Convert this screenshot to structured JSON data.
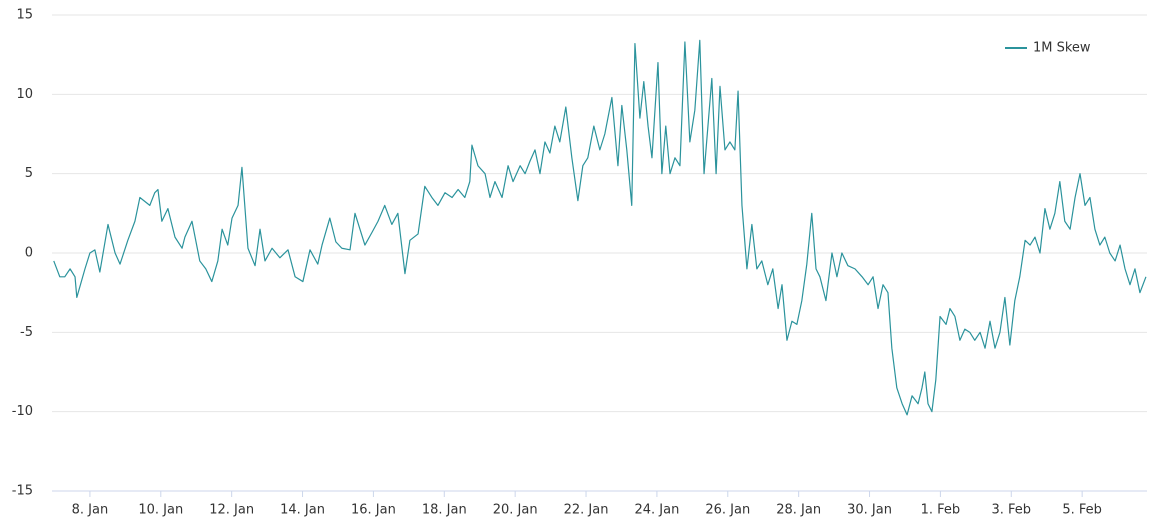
{
  "chart_data": {
    "type": "line",
    "x": [
      6.98,
      7.15,
      7.29,
      7.44,
      7.58,
      7.63,
      7.86,
      8.0,
      8.14,
      8.28,
      8.51,
      8.71,
      8.85,
      9.07,
      9.27,
      9.41,
      9.69,
      9.83,
      9.92,
      10.03,
      10.2,
      10.4,
      10.6,
      10.68,
      10.88,
      11.1,
      11.27,
      11.44,
      11.61,
      11.73,
      11.89,
      12.01,
      12.18,
      12.29,
      12.46,
      12.66,
      12.8,
      12.94,
      13.14,
      13.36,
      13.59,
      13.79,
      14.01,
      14.21,
      14.43,
      14.55,
      14.77,
      14.94,
      15.11,
      15.34,
      15.48,
      15.62,
      15.76,
      15.96,
      16.13,
      16.32,
      16.52,
      16.69,
      16.89,
      17.03,
      17.26,
      17.45,
      17.65,
      17.82,
      18.02,
      18.22,
      18.39,
      18.58,
      18.72,
      18.78,
      18.95,
      19.15,
      19.29,
      19.43,
      19.63,
      19.8,
      19.94,
      20.14,
      20.28,
      20.42,
      20.56,
      20.7,
      20.84,
      20.98,
      21.12,
      21.26,
      21.43,
      21.6,
      21.77,
      21.91,
      22.05,
      22.22,
      22.39,
      22.53,
      22.73,
      22.9,
      23.01,
      23.15,
      23.29,
      23.38,
      23.52,
      23.63,
      23.75,
      23.86,
      24.03,
      24.14,
      24.25,
      24.37,
      24.51,
      24.65,
      24.79,
      24.93,
      25.07,
      25.21,
      25.33,
      25.44,
      25.55,
      25.67,
      25.78,
      25.92,
      26.06,
      26.2,
      26.29,
      26.4,
      26.54,
      26.68,
      26.82,
      26.96,
      27.13,
      27.27,
      27.42,
      27.53,
      27.67,
      27.81,
      27.95,
      28.09,
      28.23,
      28.37,
      28.49,
      28.6,
      28.77,
      28.94,
      29.08,
      29.22,
      29.39,
      29.59,
      29.79,
      29.96,
      30.1,
      30.24,
      30.38,
      30.52,
      30.63,
      30.77,
      30.92,
      31.06,
      31.2,
      31.37,
      31.48,
      31.56,
      31.65,
      31.76,
      31.87,
      31.99,
      32.16,
      32.27,
      32.41,
      32.55,
      32.69,
      32.83,
      32.97,
      33.12,
      33.26,
      33.4,
      33.54,
      33.68,
      33.82,
      33.96,
      34.1,
      34.24,
      34.39,
      34.53,
      34.67,
      34.81,
      34.95,
      35.09,
      35.23,
      35.37,
      35.51,
      35.66,
      35.8,
      35.94,
      36.08,
      36.22,
      36.36,
      36.5,
      36.64,
      36.78,
      36.93,
      37.07,
      37.21,
      37.35,
      37.49,
      37.63,
      37.8
    ],
    "series": [
      {
        "name": "1M Skew",
        "color": "#2b939c",
        "values": [
          -0.5,
          -1.5,
          -1.5,
          -1,
          -1.5,
          -2.8,
          -1,
          0,
          0.2,
          -1.2,
          1.8,
          0,
          -0.7,
          0.8,
          2,
          3.5,
          3,
          3.8,
          4,
          2,
          2.8,
          1,
          0.3,
          1,
          2,
          -0.5,
          -1,
          -1.8,
          -0.5,
          1.5,
          0.5,
          2.2,
          3,
          5.4,
          0.3,
          -0.8,
          1.5,
          -0.5,
          0.3,
          -0.3,
          0.2,
          -1.5,
          -1.8,
          0.2,
          -0.7,
          0.5,
          2.2,
          0.7,
          0.3,
          0.2,
          2.5,
          1.5,
          0.5,
          1.3,
          2,
          3,
          1.8,
          2.5,
          -1.3,
          0.8,
          1.2,
          4.2,
          3.5,
          3,
          3.8,
          3.5,
          4,
          3.5,
          4.5,
          6.8,
          5.5,
          5,
          3.5,
          4.5,
          3.5,
          5.5,
          4.5,
          5.5,
          5,
          5.8,
          6.5,
          5,
          7,
          6.3,
          8,
          7,
          9.2,
          6,
          3.3,
          5.5,
          6,
          8,
          6.5,
          7.5,
          9.8,
          5.5,
          9.3,
          6.5,
          3,
          13.2,
          8.5,
          10.8,
          8,
          6,
          12,
          5,
          8,
          5,
          6,
          5.5,
          13.3,
          7,
          9,
          13.4,
          5,
          8,
          11,
          5,
          10.5,
          6.5,
          7,
          6.5,
          10.2,
          3,
          -1,
          1.8,
          -1,
          -0.5,
          -2,
          -1,
          -3.5,
          -2,
          -5.5,
          -4.3,
          -4.5,
          -3,
          -0.7,
          2.5,
          -1,
          -1.5,
          -3,
          0,
          -1.5,
          0,
          -0.8,
          -1,
          -1.5,
          -2,
          -1.5,
          -3.5,
          -2,
          -2.5,
          -6,
          -8.5,
          -9.5,
          -10.2,
          -9,
          -9.5,
          -8.5,
          -7.5,
          -9.5,
          -10,
          -8,
          -4,
          -4.5,
          -3.5,
          -4,
          -5.5,
          -4.8,
          -5,
          -5.5,
          -5,
          -6,
          -4.3,
          -6,
          -5,
          -2.8,
          -5.8,
          -3,
          -1.5,
          0.8,
          0.5,
          1,
          0,
          2.8,
          1.5,
          2.5,
          4.5,
          2,
          1.5,
          3.5,
          5,
          3,
          3.5,
          1.5,
          0.5,
          1,
          0,
          -0.5,
          0.5,
          -1,
          -2,
          -1,
          -2.5,
          -1.5
        ]
      }
    ],
    "xlim": [
      6.93,
      37.83
    ],
    "xticks": [
      {
        "value": 8,
        "label": "8. Jan"
      },
      {
        "value": 10,
        "label": "10. Jan"
      },
      {
        "value": 12,
        "label": "12. Jan"
      },
      {
        "value": 14,
        "label": "14. Jan"
      },
      {
        "value": 16,
        "label": "16. Jan"
      },
      {
        "value": 18,
        "label": "18. Jan"
      },
      {
        "value": 20,
        "label": "20. Jan"
      },
      {
        "value": 22,
        "label": "22. Jan"
      },
      {
        "value": 24,
        "label": "24. Jan"
      },
      {
        "value": 26,
        "label": "26. Jan"
      },
      {
        "value": 28,
        "label": "28. Jan"
      },
      {
        "value": 30,
        "label": "30. Jan"
      },
      {
        "value": 32,
        "label": "1. Feb"
      },
      {
        "value": 34,
        "label": "3. Feb"
      },
      {
        "value": 36,
        "label": "5. Feb"
      }
    ],
    "ylim": [
      -15,
      15
    ],
    "yticks": [
      -15,
      -10,
      -5,
      0,
      5,
      10,
      15
    ],
    "grid": true,
    "legend": "top-right"
  }
}
